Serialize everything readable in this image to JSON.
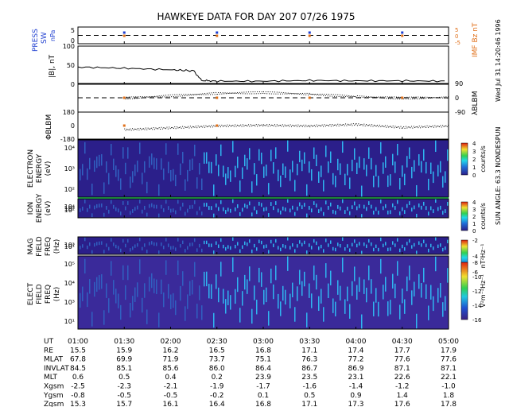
{
  "title": "HAWKEYE DATA FOR DAY 207 07/26 1975",
  "side_caption": "Wed Jul 31 14:20:46 1996",
  "sun_angle_caption": "SUN ANGLE: 63.3 NONDESPUN",
  "colors": {
    "blue_label": "#1f3fd0",
    "orange_label": "#e0701a",
    "green_line": "#2fd35a",
    "spec_background": "#2b1f8a",
    "elect_background": "#3a2a9a"
  },
  "chart_data": [
    {
      "type": "line",
      "panel": "press-imf",
      "ylabel_left": "PRESS SW nPa",
      "ylabel_right": "IMF Bz nT",
      "yticks_left": [
        "5",
        "0"
      ],
      "yticks_right": [
        "5",
        "0",
        "-5"
      ],
      "dashed_reference": 3,
      "ylim": [
        0,
        6
      ],
      "series": [
        {
          "name": "PRESS SW",
          "x": [
            "01:30",
            "02:30",
            "03:30",
            "04:30"
          ],
          "values": [
            3.0,
            3.0,
            3.0,
            3.0
          ]
        },
        {
          "name": "IMF Bz",
          "x": [
            "01:30",
            "02:30",
            "03:30",
            "04:30"
          ],
          "values": [
            0.0,
            0.0,
            -2.0,
            0.0
          ]
        }
      ]
    },
    {
      "type": "line",
      "panel": "btotal",
      "ylabel": "|B|, nT",
      "yticks": [
        "100",
        "50",
        "0"
      ],
      "ylim": [
        0,
        100
      ],
      "x": [
        "01:00",
        "01:30",
        "02:00",
        "02:15",
        "02:20",
        "02:30",
        "03:00",
        "03:30",
        "04:00",
        "04:30",
        "05:00"
      ],
      "values": [
        45,
        42,
        38,
        35,
        10,
        8,
        8,
        10,
        9,
        9,
        8
      ]
    },
    {
      "type": "scatter",
      "panel": "lambda",
      "ylabel": "λBLBM",
      "yticks": [
        "90",
        "0",
        "-90"
      ],
      "ylim": [
        -90,
        90
      ],
      "x": [
        "01:30",
        "02:30",
        "03:00",
        "03:30",
        "04:00",
        "04:30",
        "05:00"
      ],
      "values": [
        0,
        30,
        35,
        25,
        10,
        0,
        5
      ]
    },
    {
      "type": "scatter",
      "panel": "phi",
      "ylabel": "ΦBLBM",
      "yticks": [
        "180",
        "0",
        "-180"
      ],
      "ylim": [
        -180,
        180
      ],
      "x": [
        "01:30",
        "02:30",
        "03:00",
        "03:30",
        "04:00",
        "04:30",
        "05:00"
      ],
      "values": [
        -50,
        0,
        10,
        0,
        20,
        -20,
        0
      ]
    },
    {
      "type": "heatmap",
      "panel": "electron",
      "ylabel": "ELECTRON ENERGY (eV)",
      "yticks": [
        "10⁴",
        "10³",
        "10²"
      ],
      "colorbar_label": "counts/s",
      "colorbar_ticks": [
        "4",
        "3",
        "2",
        "1",
        "0"
      ]
    },
    {
      "type": "heatmap",
      "panel": "ion",
      "ylabel": "ION ENERGY (eV)",
      "yticks": [
        "10⁴",
        "10³",
        "10²"
      ],
      "colorbar_label": "counts/s",
      "colorbar_ticks": [
        "4",
        "3",
        "2",
        "1",
        "0"
      ]
    },
    {
      "type": "heatmap",
      "panel": "mag",
      "ylabel": "MAG FIELD FREQ (Hz)",
      "yticks": [
        "10³",
        "10¹"
      ],
      "colorbar_label": "nT²Hz⁻¹",
      "colorbar_ticks": [
        "-2",
        "-4",
        "-6"
      ]
    },
    {
      "type": "heatmap",
      "panel": "elect",
      "ylabel": "ELECT FIELD FREQ (Hz)",
      "yticks": [
        "10⁵",
        "10⁴",
        "10³",
        "10¹"
      ],
      "colorbar_label": "V²m⁻²Hz⁻¹",
      "colorbar_ticks": [
        "-8",
        "-10",
        "-12",
        "-14",
        "-16"
      ]
    }
  ],
  "ephemeris": {
    "columns": [
      "01:00",
      "01:30",
      "02:00",
      "02:30",
      "03:00",
      "03:30",
      "04:00",
      "04:30",
      "05:00"
    ],
    "rows": [
      {
        "label": "UT",
        "values": [
          "01:00",
          "01:30",
          "02:00",
          "02:30",
          "03:00",
          "03:30",
          "04:00",
          "04:30",
          "05:00"
        ]
      },
      {
        "label": "RE",
        "values": [
          "15.5",
          "15.9",
          "16.2",
          "16.5",
          "16.8",
          "17.1",
          "17.4",
          "17.7",
          "17.9"
        ]
      },
      {
        "label": "MLAT",
        "values": [
          "67.8",
          "69.9",
          "71.9",
          "73.7",
          "75.1",
          "76.3",
          "77.2",
          "77.6",
          "77.6"
        ]
      },
      {
        "label": "INVLAT",
        "values": [
          "84.5",
          "85.1",
          "85.6",
          "86.0",
          "86.4",
          "86.7",
          "86.9",
          "87.1",
          "87.1"
        ]
      },
      {
        "label": "MLT",
        "values": [
          "0.6",
          "0.5",
          "0.4",
          "0.2",
          "23.9",
          "23.5",
          "23.1",
          "22.6",
          "22.1"
        ]
      },
      {
        "label": "Xgsm",
        "values": [
          "-2.5",
          "-2.3",
          "-2.1",
          "-1.9",
          "-1.7",
          "-1.6",
          "-1.4",
          "-1.2",
          "-1.0"
        ]
      },
      {
        "label": "Ygsm",
        "values": [
          "-0.8",
          "-0.5",
          "-0.5",
          "-0.2",
          "0.1",
          "0.5",
          "0.9",
          "1.4",
          "1.8"
        ]
      },
      {
        "label": "Zgsm",
        "values": [
          "15.3",
          "15.7",
          "16.1",
          "16.4",
          "16.8",
          "17.1",
          "17.3",
          "17.6",
          "17.8"
        ]
      }
    ]
  }
}
